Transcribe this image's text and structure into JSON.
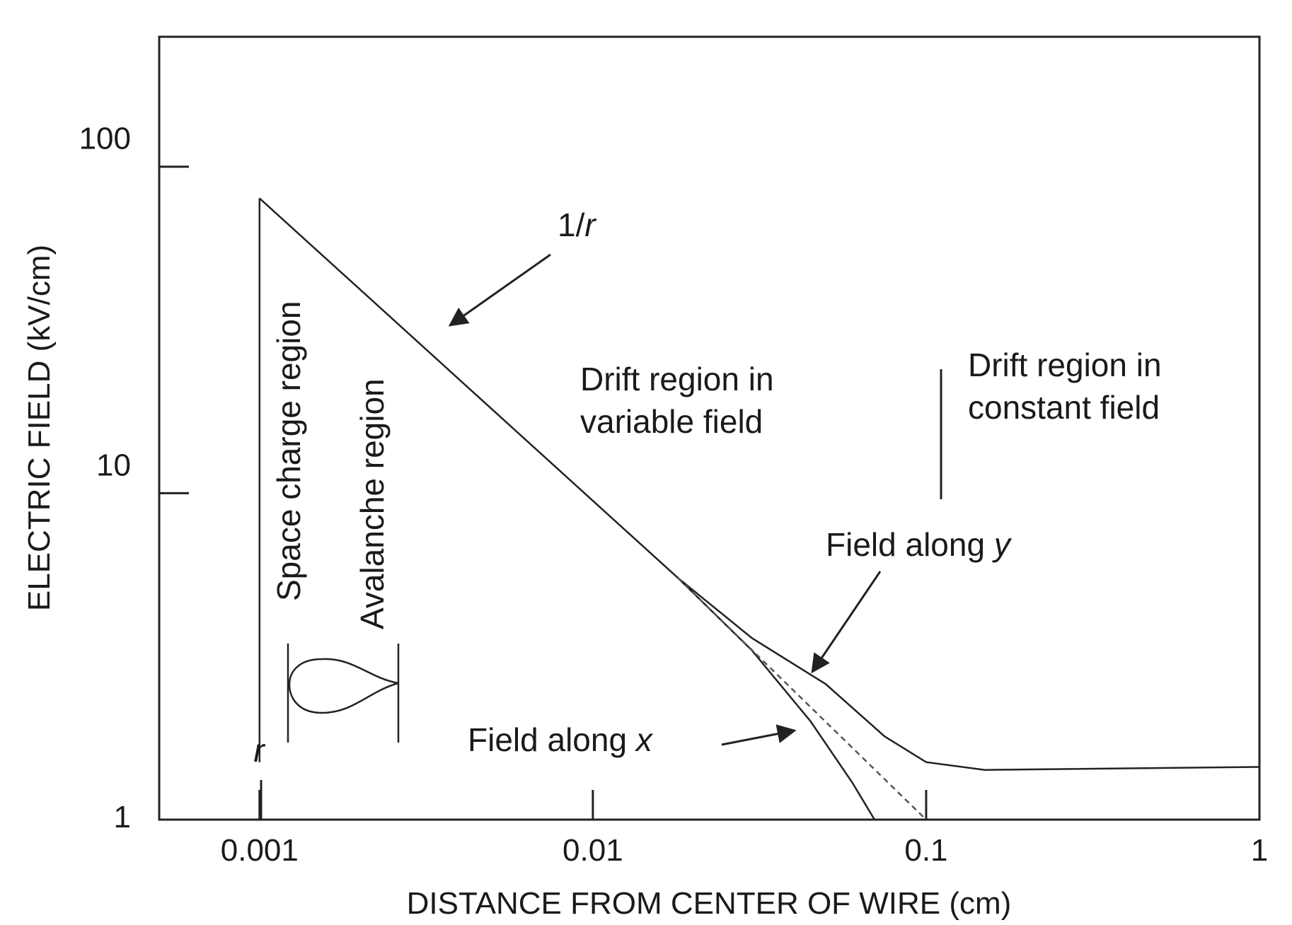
{
  "chart_data": {
    "type": "line",
    "xlabel": "DISTANCE FROM CENTER OF WIRE (cm)",
    "ylabel": "ELECTRIC FIELD (kV/cm)",
    "xscale": "log",
    "yscale": "log",
    "xlim": [
      0.0005,
      1
    ],
    "ylim": [
      1,
      250
    ],
    "x_ticks": [
      {
        "value": 0.001,
        "label": "0.001"
      },
      {
        "value": 0.01,
        "label": "0.01"
      },
      {
        "value": 0.1,
        "label": "0.1"
      },
      {
        "value": 1,
        "label": "1"
      }
    ],
    "y_ticks": [
      {
        "value": 1,
        "label": "1"
      },
      {
        "value": 10,
        "label": "10"
      },
      {
        "value": 100,
        "label": "100"
      }
    ],
    "grid": false,
    "series": [
      {
        "key": "wire_edge",
        "style": "solid",
        "points": [
          [
            0.001,
            1.5
          ],
          [
            0.001,
            80
          ]
        ]
      },
      {
        "key": "one_over_r",
        "style": "solid",
        "points": [
          [
            0.001,
            80
          ],
          [
            0.018,
            5.5
          ]
        ]
      },
      {
        "key": "field_y",
        "style": "solid",
        "points": [
          [
            0.018,
            5.5
          ],
          [
            0.03,
            3.6
          ],
          [
            0.05,
            2.6
          ],
          [
            0.075,
            1.8
          ],
          [
            0.1,
            1.5
          ],
          [
            0.15,
            1.42
          ],
          [
            1,
            1.45
          ]
        ]
      },
      {
        "key": "field_x",
        "style": "solid",
        "points": [
          [
            0.018,
            5.5
          ],
          [
            0.03,
            3.3
          ],
          [
            0.045,
            2.0
          ],
          [
            0.06,
            1.3
          ],
          [
            0.07,
            1.0
          ]
        ]
      },
      {
        "key": "pure_one_over_r",
        "style": "dashed",
        "points": [
          [
            0.018,
            5.5
          ],
          [
            0.1,
            1.0
          ]
        ]
      }
    ],
    "annotations": {
      "one_over_r": {
        "prefix": "1/",
        "var": "r"
      },
      "drift_variable": [
        "Drift region in",
        "variable field"
      ],
      "drift_constant": [
        "Drift region in",
        "constant field"
      ],
      "field_y": {
        "prefix": "Field along ",
        "var": "y"
      },
      "field_x": {
        "prefix": "Field along ",
        "var": "x"
      },
      "space_charge": "Space charge region",
      "avalanche": "Avalanche region",
      "r_marker": "r"
    }
  }
}
